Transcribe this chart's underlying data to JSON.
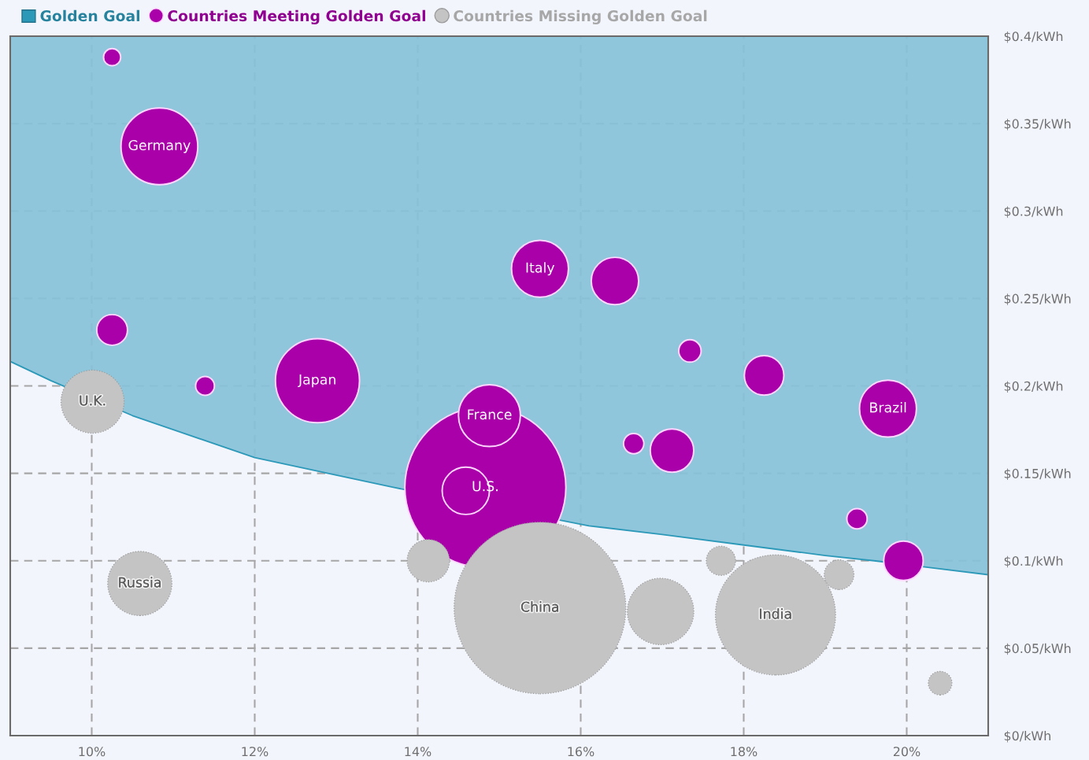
{
  "chart_data": {
    "type": "bubble",
    "xlim": [
      9,
      21
    ],
    "xticks": [
      {
        "value": 10,
        "label": "10%"
      },
      {
        "value": 12,
        "label": "12%"
      },
      {
        "value": 14,
        "label": "14%"
      },
      {
        "value": 16,
        "label": "16%"
      },
      {
        "value": 18,
        "label": "18%"
      },
      {
        "value": 20,
        "label": "20%"
      }
    ],
    "ylim": [
      0,
      0.4
    ],
    "yticks": [
      {
        "value": 0,
        "label": "$0/kWh"
      },
      {
        "value": 0.05,
        "label": "$0.05/kWh"
      },
      {
        "value": 0.1,
        "label": "$0.1/kWh"
      },
      {
        "value": 0.15,
        "label": "$0.15/kWh"
      },
      {
        "value": 0.2,
        "label": "$0.2/kWh"
      },
      {
        "value": 0.25,
        "label": "$0.25/kWh"
      },
      {
        "value": 0.3,
        "label": "$0.3/kWh"
      },
      {
        "value": 0.35,
        "label": "$0.35/kWh"
      },
      {
        "value": 0.4,
        "label": "$0.4/kWh"
      }
    ],
    "grid": true,
    "legend": "top left",
    "series": [
      {
        "name": "Golden Goal",
        "type": "line",
        "color": "#2d99b9",
        "x": [
          9,
          9.5,
          10.5,
          11,
          12,
          13,
          13.7,
          16.1,
          17,
          18,
          19,
          19.6,
          20.3,
          21
        ],
        "values": [
          0.214,
          0.203,
          0.183,
          0.175,
          0.159,
          0.149,
          0.142,
          0.12,
          0.115,
          0.109,
          0.103,
          0.1,
          0.096,
          0.092
        ],
        "lower": [
          0.214,
          0.203,
          0.183,
          0.175,
          0.159,
          0.149,
          0.142,
          0.12,
          0.115,
          0.109,
          0.103,
          0.1,
          0.096,
          0.092
        ],
        "upper": [
          0.4,
          0.4,
          0.4,
          0.4,
          0.4,
          0.4,
          0.4,
          0.4,
          0.4,
          0.4,
          0.4,
          0.4,
          0.4,
          0.4
        ]
      },
      {
        "name": "Countries Meeting Golden Goal",
        "color": "#aa00aa",
        "x": [
          14.83,
          14.59,
          14.88,
          10.25,
          10.83,
          10.25,
          11.39,
          12.77,
          15.5,
          16.42,
          17.34,
          18.25,
          19.77,
          16.65,
          17.12,
          19.39,
          19.96
        ],
        "values": [
          0.142,
          0.14,
          0.183,
          0.388,
          0.337,
          0.232,
          0.2,
          0.203,
          0.267,
          0.26,
          0.22,
          0.206,
          0.187,
          0.167,
          0.163,
          0.124,
          0.1
        ],
        "sizes": [
          0.88,
          0.076,
          0.13,
          0.01,
          0.2,
          0.032,
          0.012,
          0.24,
          0.11,
          0.076,
          0.017,
          0.053,
          0.11,
          0.014,
          0.064,
          0.014,
          0.053
        ]
      },
      {
        "name": "Countries Missing Golden Goal",
        "color": "#c4c4c4",
        "x": [
          15.5,
          18.39,
          16.98,
          10.59,
          10.01,
          14.13,
          17.72,
          19.17,
          20.41
        ],
        "values": [
          0.073,
          0.069,
          0.071,
          0.087,
          0.191,
          0.1,
          0.1,
          0.092,
          0.03
        ],
        "sizes": [
          1,
          0.49,
          0.15,
          0.14,
          0.135,
          0.061,
          0.029,
          0.03,
          0.019
        ]
      }
    ],
    "annotations": [
      {
        "text": "Germany",
        "x": 10.83,
        "y": 0.337
      },
      {
        "text": "Italy",
        "x": 15.5,
        "y": 0.267
      },
      {
        "text": "Japan",
        "x": 12.77,
        "y": 0.203
      },
      {
        "text": "France",
        "x": 14.88,
        "y": 0.183
      },
      {
        "text": "U.S.",
        "x": 14.83,
        "y": 0.142
      },
      {
        "text": "Brazil",
        "x": 19.77,
        "y": 0.187
      },
      {
        "text": "U.K.",
        "x": 10.01,
        "y": 0.191
      },
      {
        "text": "Russia",
        "x": 10.59,
        "y": 0.087
      },
      {
        "text": "China",
        "x": 15.5,
        "y": 0.073
      },
      {
        "text": "India",
        "x": 18.39,
        "y": 0.069
      }
    ]
  }
}
